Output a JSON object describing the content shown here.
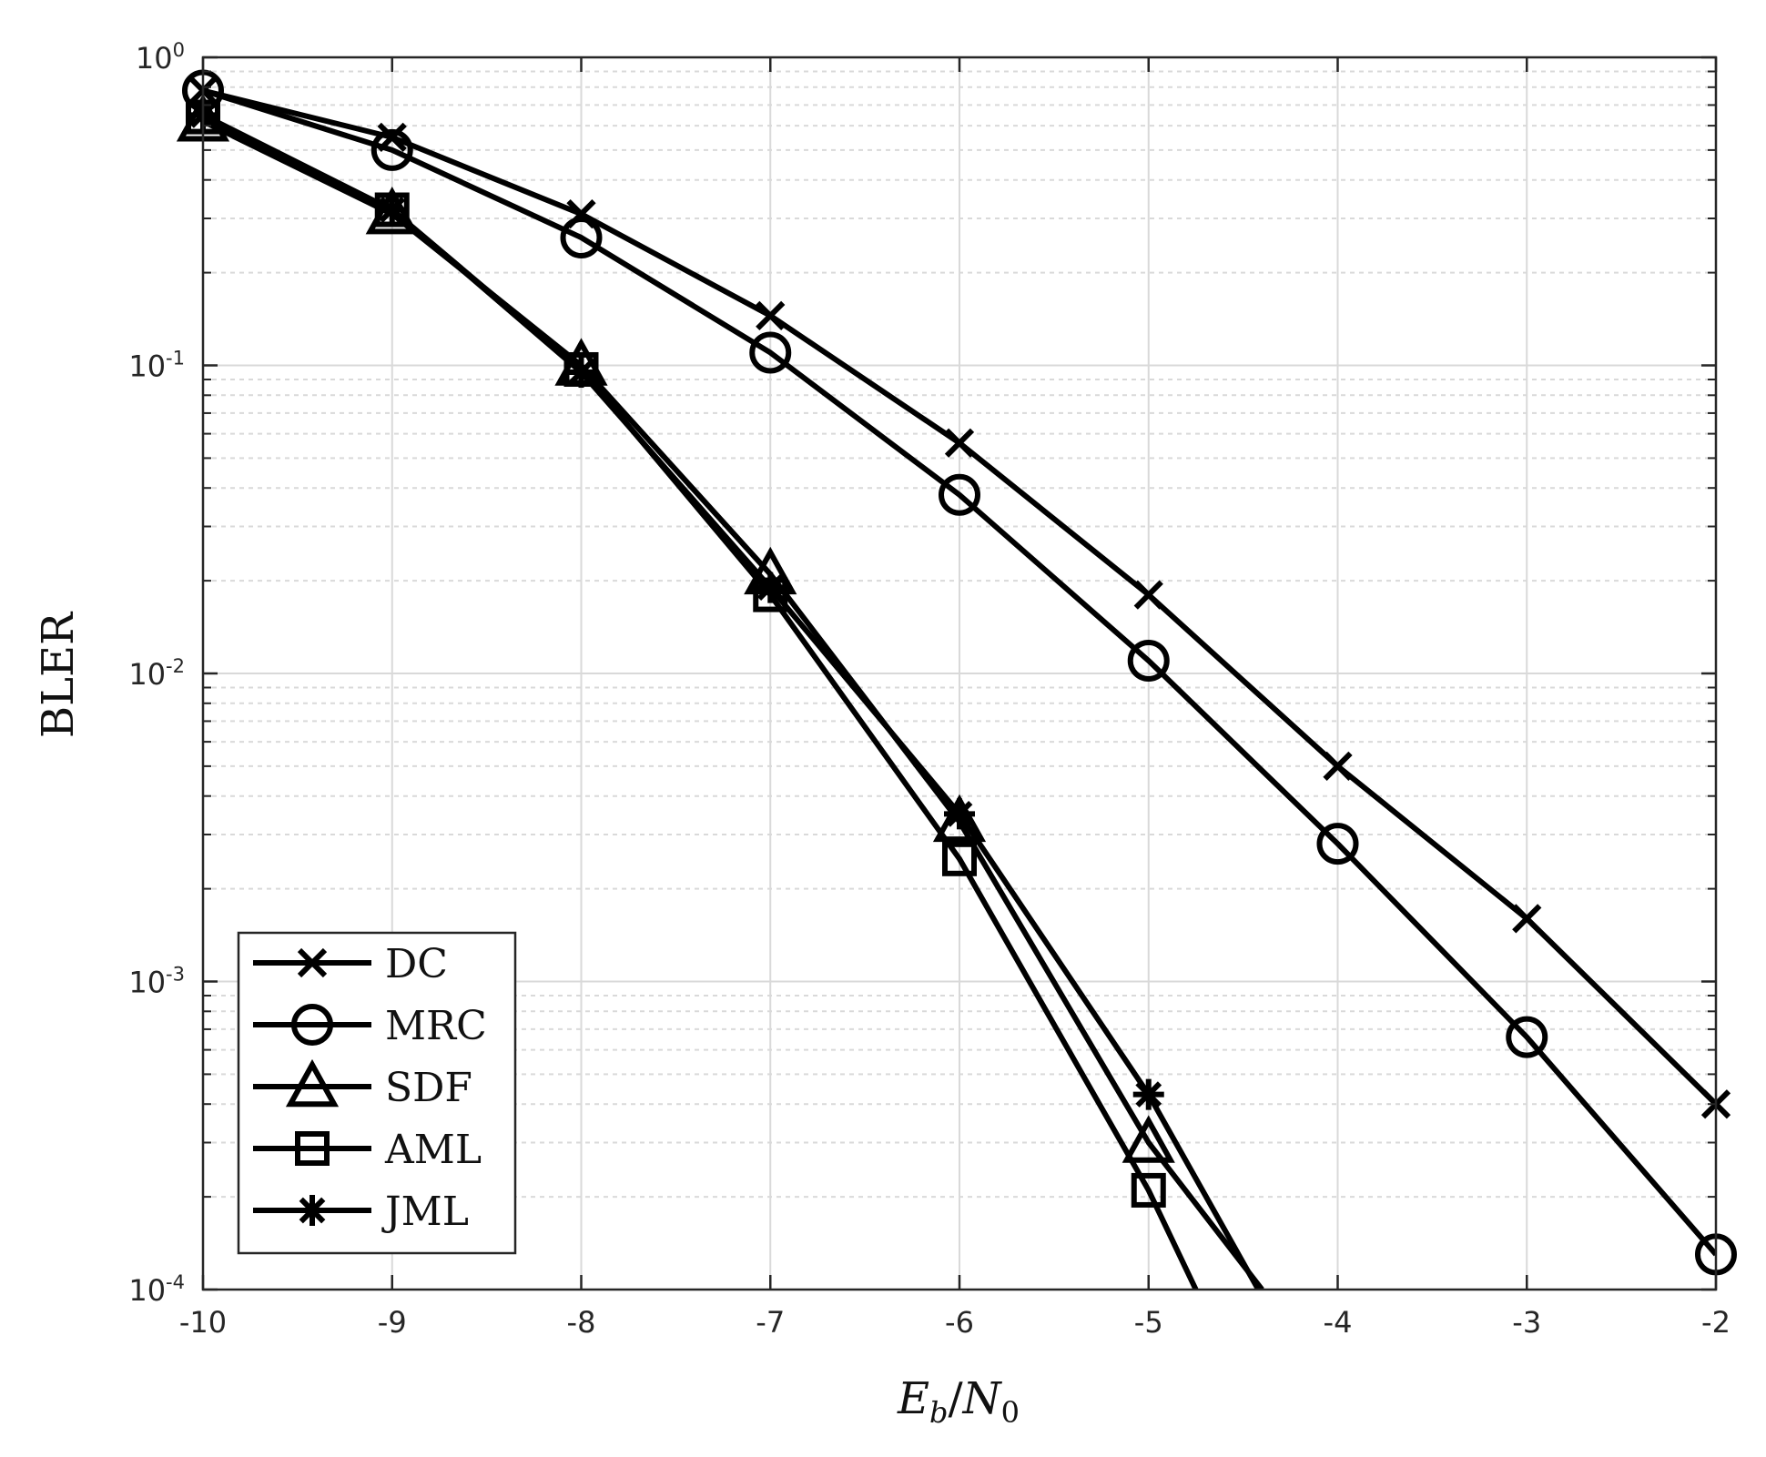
{
  "chart_data": {
    "type": "line",
    "title": "",
    "xlabel": {
      "base": "E",
      "base_sub": "b",
      "sep": "/",
      "den": "N",
      "den_sub": "0"
    },
    "ylabel": "BLER",
    "xscale": "linear",
    "yscale": "log",
    "xlim": [
      -10,
      -2
    ],
    "ylim": [
      0.0001,
      1
    ],
    "x_ticks": [
      -10,
      -9,
      -8,
      -7,
      -6,
      -5,
      -4,
      -3,
      -2
    ],
    "x_tick_labels": [
      "-10",
      "-9",
      "-8",
      "-7",
      "-6",
      "-5",
      "-4",
      "-3",
      "-2"
    ],
    "y_ticks": [
      {
        "value": 1,
        "base": "10",
        "exp": "0"
      },
      {
        "value": 0.1,
        "base": "10",
        "exp": "-1"
      },
      {
        "value": 0.01,
        "base": "10",
        "exp": "-2"
      },
      {
        "value": 0.001,
        "base": "10",
        "exp": "-3"
      },
      {
        "value": 0.0001,
        "base": "10",
        "exp": "-4"
      }
    ],
    "grid": true,
    "minor_grid": true,
    "legend_position": "bottom-left",
    "line_color": "#000000",
    "grid_color": "#d9d9d9",
    "series": [
      {
        "name": "DC",
        "marker": "x",
        "x": [
          -10,
          -9,
          -8,
          -7,
          -6,
          -5,
          -4,
          -3,
          -2
        ],
        "y": [
          0.78,
          0.55,
          0.31,
          0.145,
          0.056,
          0.018,
          0.005,
          0.0016,
          0.0004
        ]
      },
      {
        "name": "MRC",
        "marker": "circle",
        "x": [
          -10,
          -9,
          -8,
          -7,
          -6,
          -5,
          -4,
          -3,
          -2
        ],
        "y": [
          0.78,
          0.5,
          0.26,
          0.11,
          0.038,
          0.011,
          0.0028,
          0.00066,
          0.00013
        ]
      },
      {
        "name": "SDF",
        "marker": "triangle",
        "x": [
          -10,
          -9,
          -8,
          -7,
          -6,
          -5,
          -4.4
        ],
        "y": [
          0.62,
          0.31,
          0.1,
          0.021,
          0.0033,
          0.0003,
          0.0001
        ]
      },
      {
        "name": "AML",
        "marker": "square",
        "x": [
          -10,
          -9,
          -8,
          -7,
          -6,
          -5,
          -4.75
        ],
        "y": [
          0.64,
          0.32,
          0.097,
          0.018,
          0.0025,
          0.00021,
          0.0001
        ]
      },
      {
        "name": "JML",
        "marker": "asterisk",
        "x": [
          -10,
          -9,
          -8,
          -7,
          -6,
          -5,
          -4.42
        ],
        "y": [
          0.65,
          0.32,
          0.095,
          0.019,
          0.0035,
          0.00043,
          0.0001
        ]
      }
    ]
  }
}
